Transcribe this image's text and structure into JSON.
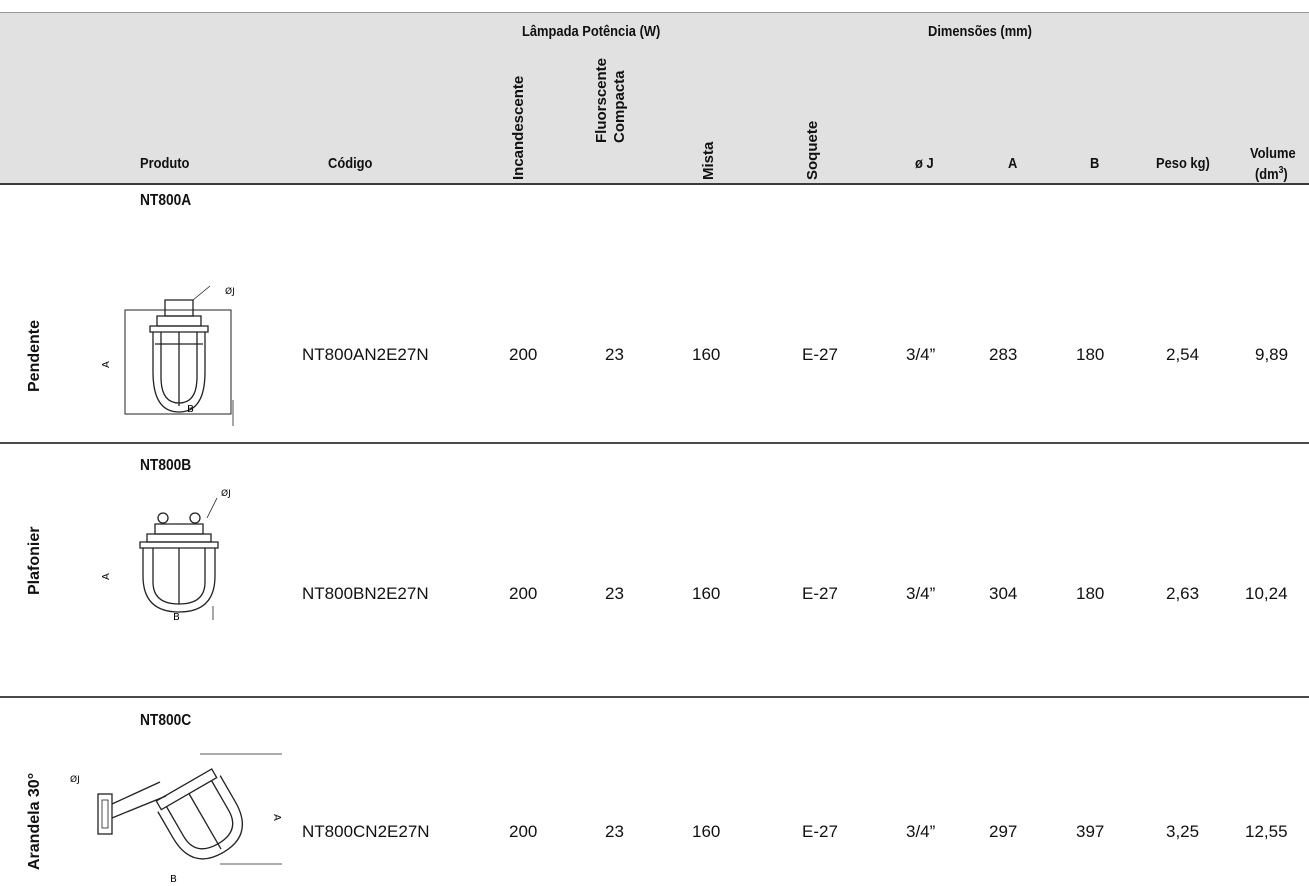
{
  "header": {
    "group_lampada": "Lâmpada Potência (W)",
    "group_dimensoes": "Dimensões (mm)",
    "produto": "Produto",
    "codigo": "Código",
    "incandescente": "Incandescente",
    "fluorescente_line1": "Fluorscente",
    "fluorescente_line2": "Compacta",
    "mista": "Mista",
    "soquete": "Soquete",
    "dim_j": "ø J",
    "dim_a": "A",
    "dim_b": "B",
    "peso": "Peso kg)",
    "volume_line1": "Volume",
    "volume_line2_pre": "(dm",
    "volume_line2_sup": "3",
    "volume_line2_post": ")"
  },
  "rows": [
    {
      "category": "Pendente",
      "model": "NT800A",
      "drawing_labels": {
        "dia": "ØJ",
        "a": "A",
        "b": "B"
      },
      "codigo": "NT800AN2E27N",
      "incandescente": "200",
      "fluorescente": "23",
      "mista": "160",
      "soquete": "E-27",
      "j": "3/4”",
      "a": "283",
      "b": "180",
      "peso": "2,54",
      "volume": "9,89"
    },
    {
      "category": "Plafonier",
      "model": "NT800B",
      "drawing_labels": {
        "dia": "ØJ",
        "a": "A",
        "b": "B"
      },
      "codigo": "NT800BN2E27N",
      "incandescente": "200",
      "fluorescente": "23",
      "mista": "160",
      "soquete": "E-27",
      "j": "3/4”",
      "a": "304",
      "b": "180",
      "peso": "2,63",
      "volume": "10,24"
    },
    {
      "category": "Arandela 30°",
      "model": "NT800C",
      "drawing_labels": {
        "dia": "ØJ",
        "a": "A",
        "b": "B"
      },
      "codigo": "NT800CN2E27N",
      "incandescente": "200",
      "fluorescente": "23",
      "mista": "160",
      "soquete": "E-27",
      "j": "3/4”",
      "a": "297",
      "b": "397",
      "peso": "3,25",
      "volume": "12,55"
    }
  ]
}
